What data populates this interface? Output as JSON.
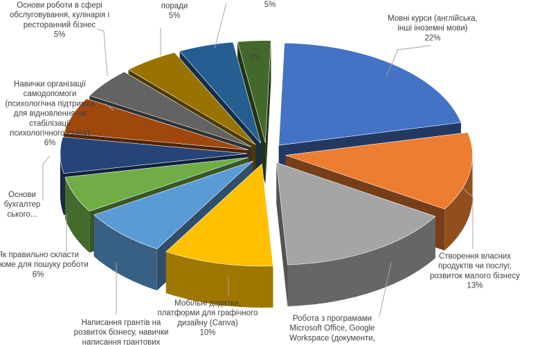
{
  "chart_data": {
    "type": "pie",
    "style": "3d-exploded",
    "unit": "%",
    "slices": [
      {
        "label": "Мовні курси (англійська, інші іноземні мови)",
        "value": 22,
        "value_text": "22%",
        "color": "#4472c4",
        "label_lines": [
          "Мовні курси (англійська,",
          "інші іноземні мови)",
          "22%"
        ]
      },
      {
        "label": "Створення власних продуктів чи послуг, розвиток малого бізнесу",
        "value": 13,
        "value_text": "13%",
        "color": "#ed7d31",
        "label_lines": [
          "Створення власних",
          "продуктів чи послуг,",
          "розвиток малого бізнесу",
          "13%"
        ]
      },
      {
        "label": "Робота з програмами Microsoft Office, Google Workspace (документи, …",
        "value": 16,
        "value_text": "",
        "color": "#a5a5a5",
        "label_lines": [
          "Робота з програмами",
          "Microsoft Office, Google",
          "Workspace (документи,"
        ]
      },
      {
        "label": "Мобільні додатки, платформи для графічного дизайну (Canva)",
        "value": 10,
        "value_text": "10%",
        "color": "#ffc000",
        "label_lines": [
          "Мобільні додатки,",
          "платформи для графічного",
          "дизайну (Canva)",
          "10%"
        ]
      },
      {
        "label": "Написання грантів на розвиток бізнесу, навички написання грантових …",
        "value": 8,
        "value_text": "",
        "color": "#5b9bd5",
        "label_lines": [
          "Написання грантів на",
          "розвиток бізнесу, навички",
          "написання грантових"
        ]
      },
      {
        "label": "Як правильно скласти резюме для пошуку роботи",
        "value": 6,
        "value_text": "6%",
        "color": "#70ad47",
        "label_lines": [
          "Як правильно скласти",
          "резюме для пошуку роботи",
          "6%"
        ]
      },
      {
        "label": "Основи бухгалтерського…",
        "value": 6,
        "value_text": "",
        "color": "#264478",
        "label_lines": [
          "Основи",
          "бухгалтер",
          "ського..."
        ]
      },
      {
        "label": "Навички організації самодопомоги (психологічна підтримка для відновлення чи стабілізації психологічного стану)",
        "value": 6,
        "value_text": "6%",
        "color": "#9e480e",
        "label_lines": [
          "Навички організації",
          "самодопомоги",
          "(психологічна підтримка",
          "для відновлення чи",
          "стабілізації",
          "психологічного стану)",
          "6%"
        ]
      },
      {
        "label": "Основи роботи в сфері обслуговування, кулінарія і ресторанний бізнес",
        "value": 5,
        "value_text": "5%",
        "color": "#636363",
        "label_lines": [
          "Основи роботи в сфері",
          "обслуговування, кулінарія і",
          "ресторанний бізнес",
          "5%"
        ]
      },
      {
        "label": "… поради",
        "value": 5,
        "value_text": "5%",
        "color": "#997300",
        "label_lines": [
          "поради",
          "5%"
        ]
      },
      {
        "label": "…",
        "value": 5,
        "value_text": "5%",
        "color": "#255e91",
        "label_lines": [
          "5%"
        ]
      },
      {
        "label": "…",
        "value": 3,
        "value_text": "3%",
        "color": "#43682b",
        "label_lines": [
          "...",
          "3%"
        ]
      }
    ]
  }
}
